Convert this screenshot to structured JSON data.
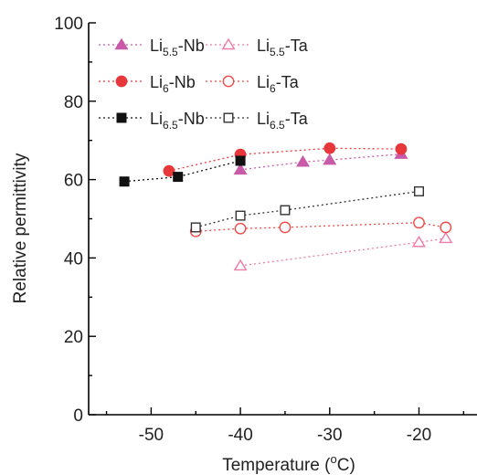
{
  "chart_data": {
    "type": "scatter",
    "xlabel": {
      "pre": "Temperature (",
      "sup": "o",
      "post": "C)"
    },
    "ylabel": "Relative permittivity",
    "xlim": [
      -57,
      -13.5
    ],
    "ylim": [
      0,
      100
    ],
    "x_ticks": [
      -50,
      -40,
      -30,
      -20
    ],
    "x_tick_labels": [
      "-50",
      "-40",
      "-30",
      "-20"
    ],
    "y_ticks": [
      0,
      20,
      40,
      60,
      80,
      100
    ],
    "y_tick_labels": [
      "0",
      "20",
      "40",
      "60",
      "80",
      "100"
    ],
    "x_minor_ticks": [
      -55,
      -45,
      -35,
      -25,
      -15
    ],
    "y_minor_ticks": [
      10,
      30,
      50,
      70,
      90
    ],
    "legend_position": "top-left",
    "series": [
      {
        "base": "Li",
        "sub": "5.5",
        "suffix": "-Nb",
        "color": "#c85aa8",
        "marker": "triangle",
        "filled": true,
        "x": [
          -40,
          -33,
          -30,
          -22
        ],
        "y": [
          62.5,
          64.5,
          65.0,
          66.5
        ]
      },
      {
        "base": "Li",
        "sub": "5.5",
        "suffix": "-Ta",
        "color": "#f07aa8",
        "marker": "triangle",
        "filled": false,
        "x": [
          -40,
          -20,
          -17
        ],
        "y": [
          38.0,
          44.0,
          45.0
        ]
      },
      {
        "base": "Li",
        "sub": "6",
        "suffix": "-Nb",
        "color": "#e8373b",
        "marker": "circle",
        "filled": true,
        "x": [
          -48,
          -40,
          -30,
          -22
        ],
        "y": [
          62.2,
          66.4,
          68.0,
          67.8
        ]
      },
      {
        "base": "Li",
        "sub": "6",
        "suffix": "-Ta",
        "color": "#f04a4a",
        "marker": "circle",
        "filled": false,
        "x": [
          -45,
          -40,
          -35,
          -20,
          -17
        ],
        "y": [
          46.8,
          47.5,
          47.8,
          49.0,
          47.8
        ]
      },
      {
        "base": "Li",
        "sub": "6.5",
        "suffix": "-Nb",
        "color": "#111111",
        "marker": "square",
        "filled": true,
        "x": [
          -53,
          -47,
          -40
        ],
        "y": [
          59.5,
          60.7,
          64.8
        ]
      },
      {
        "base": "Li",
        "sub": "6.5",
        "suffix": "-Ta",
        "color": "#333333",
        "marker": "square",
        "filled": false,
        "x": [
          -45,
          -40,
          -35,
          -20
        ],
        "y": [
          47.8,
          50.8,
          52.2,
          57.0
        ]
      }
    ]
  }
}
